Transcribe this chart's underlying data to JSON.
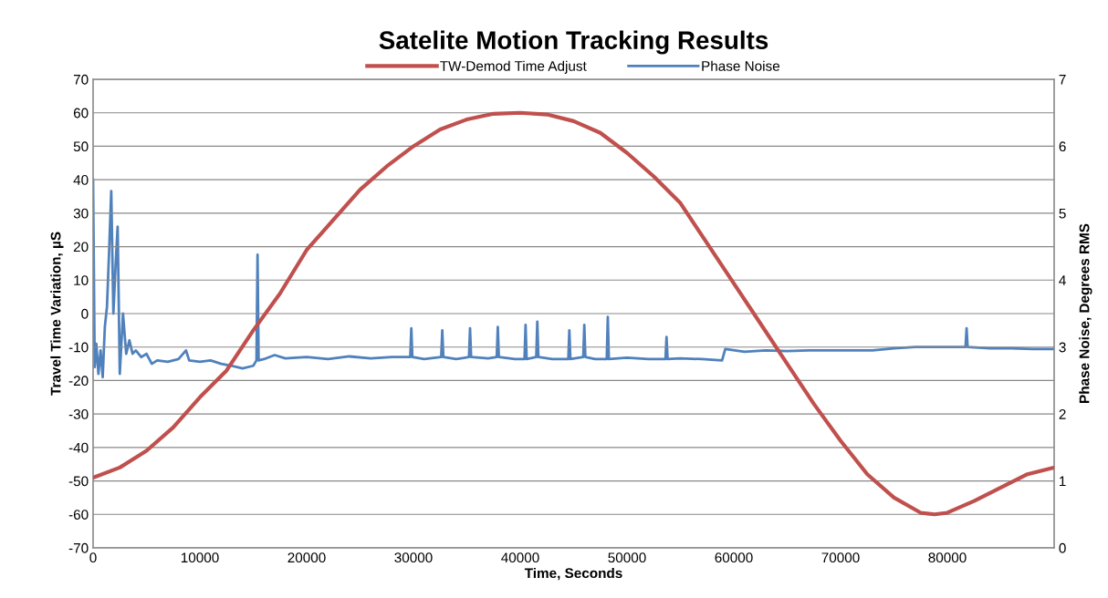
{
  "chart_data": {
    "type": "line",
    "title": "Satelite Motion Tracking Results",
    "xlabel": "Time, Seconds",
    "ylabel": "Travel Time Variation, µS",
    "y2label": "Phase Noise, Degrees RMS",
    "xlim": [
      0,
      90000
    ],
    "xticks": [
      0,
      10000,
      20000,
      30000,
      40000,
      50000,
      60000,
      70000,
      80000
    ],
    "ylim": [
      -70,
      70
    ],
    "yticks": [
      -70,
      -60,
      -50,
      -40,
      -30,
      -20,
      -10,
      0,
      10,
      20,
      30,
      40,
      50,
      60,
      70
    ],
    "y2lim": [
      0,
      7
    ],
    "y2ticks": [
      0,
      1,
      2,
      3,
      4,
      5,
      6,
      7
    ],
    "grid": "y",
    "legend": "top",
    "marker": "none",
    "line_style": "solid",
    "series": [
      {
        "name": "TW-Demod Time Adjust",
        "color": "#c0504d",
        "x": [
          0,
          2500,
          5000,
          7500,
          10000,
          12500,
          15000,
          17500,
          20000,
          22500,
          25000,
          27500,
          30000,
          32500,
          35000,
          37500,
          40000,
          42500,
          45000,
          47500,
          50000,
          52500,
          55000,
          57500,
          60000,
          62500,
          65000,
          67500,
          70000,
          72500,
          75000,
          77500,
          78800,
          80000,
          82500,
          85000,
          87500,
          90000
        ],
        "values": [
          -49,
          -46,
          -41,
          -34,
          -25,
          -17,
          -5,
          6,
          19,
          28,
          37,
          44,
          50,
          55,
          58,
          59.7,
          60,
          59.5,
          57.5,
          54,
          48,
          41,
          33,
          21,
          9,
          -3,
          -15,
          -27,
          -38,
          -48,
          -55,
          -59.5,
          -60,
          -59.5,
          -56,
          -52,
          -48,
          -46
        ]
      },
      {
        "name": "Phase Noise",
        "color": "#4f81bd",
        "axis": "y2",
        "x": [
          0,
          150,
          300,
          500,
          700,
          900,
          1100,
          1300,
          1500,
          1700,
          1900,
          2100,
          2300,
          2500,
          2800,
          3100,
          3400,
          3700,
          4000,
          4500,
          5000,
          5500,
          6000,
          7000,
          8000,
          8700,
          9000,
          10000,
          11000,
          12000,
          13000,
          14000,
          15000,
          15300,
          15400,
          15500,
          16000,
          17000,
          18000,
          20000,
          22000,
          24000,
          26000,
          28000,
          29700,
          29800,
          29900,
          31000,
          32600,
          32700,
          32800,
          34000,
          35200,
          35300,
          35400,
          37000,
          37800,
          37900,
          38000,
          39500,
          40400,
          40500,
          40600,
          41500,
          41600,
          41700,
          43000,
          44500,
          44600,
          44700,
          45900,
          46000,
          46100,
          47000,
          48100,
          48200,
          48300,
          50000,
          52000,
          53600,
          53700,
          53800,
          55000,
          57000,
          58900,
          59200,
          61000,
          63000,
          65000,
          67000,
          70000,
          73000,
          75000,
          77000,
          79000,
          81700,
          81800,
          81900,
          84000,
          86000,
          88000,
          90000
        ],
        "values": [
          5.5,
          2.7,
          3.05,
          2.6,
          2.95,
          2.55,
          3.3,
          3.6,
          4.43,
          5.33,
          3.5,
          4.2,
          4.8,
          2.6,
          3.5,
          2.9,
          3.1,
          2.9,
          2.95,
          2.85,
          2.9,
          2.75,
          2.8,
          2.78,
          2.82,
          2.95,
          2.8,
          2.78,
          2.8,
          2.75,
          2.72,
          2.68,
          2.72,
          2.8,
          4.38,
          2.8,
          2.82,
          2.88,
          2.83,
          2.85,
          2.82,
          2.86,
          2.83,
          2.85,
          2.85,
          3.28,
          2.85,
          2.82,
          2.85,
          3.25,
          2.85,
          2.82,
          2.85,
          3.28,
          2.85,
          2.83,
          2.85,
          3.3,
          2.85,
          2.82,
          2.82,
          3.33,
          2.82,
          2.85,
          3.38,
          2.85,
          2.82,
          2.82,
          3.25,
          2.82,
          2.85,
          3.33,
          2.85,
          2.82,
          2.82,
          3.45,
          2.82,
          2.84,
          2.82,
          2.82,
          3.15,
          2.82,
          2.83,
          2.82,
          2.8,
          2.97,
          2.93,
          2.95,
          2.94,
          2.95,
          2.95,
          2.95,
          2.98,
          3.0,
          3.0,
          3.0,
          3.28,
          3.0,
          2.98,
          2.98,
          2.97,
          2.97
        ]
      }
    ]
  }
}
